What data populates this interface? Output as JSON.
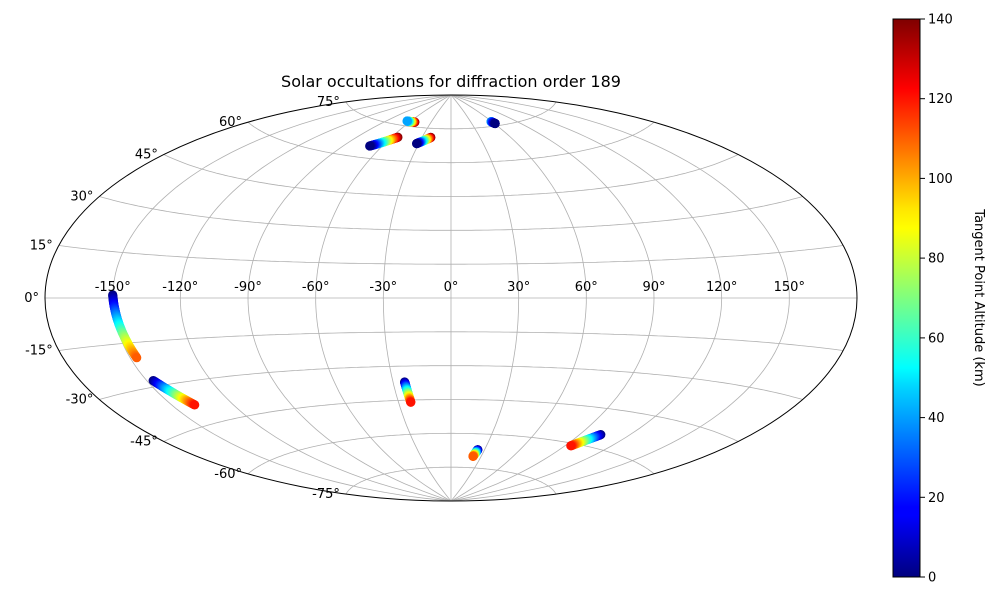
{
  "chart_data": {
    "type": "scatter",
    "projection": "aitoff",
    "title": "Solar occultations for diffraction order 189",
    "grid": true,
    "lon_ticks": [
      "-150°",
      "-120°",
      "-90°",
      "-60°",
      "-30°",
      "0°",
      "30°",
      "60°",
      "90°",
      "120°",
      "150°"
    ],
    "lon_tick_values": [
      -150,
      -120,
      -90,
      -60,
      -30,
      0,
      30,
      60,
      90,
      120,
      150
    ],
    "lat_ticks": [
      "-75°",
      "-60°",
      "-45°",
      "-30°",
      "-15°",
      "0°",
      "15°",
      "30°",
      "45°",
      "60°",
      "75°"
    ],
    "lat_tick_values": [
      -75,
      -60,
      -45,
      -30,
      -15,
      0,
      15,
      30,
      45,
      60,
      75
    ],
    "colorbar": {
      "label": "Tangent Point Altitude (km)",
      "range": [
        0,
        140
      ],
      "colormap": "jet",
      "ticks": [
        "0",
        "20",
        "40",
        "60",
        "80",
        "100",
        "120",
        "140"
      ],
      "tick_values": [
        0,
        20,
        40,
        60,
        80,
        100,
        120,
        140
      ]
    },
    "tracks": [
      {
        "lon_start": -53,
        "lat_start": 77,
        "lon_end": -65,
        "lat_end": 77,
        "alt_start": 140,
        "alt_end": 40
      },
      {
        "lon_start": -54,
        "lat_start": 70,
        "lon_end": -70,
        "lat_end": 65,
        "alt_start": 140,
        "alt_end": 0
      },
      {
        "lon_start": -21,
        "lat_start": 71,
        "lon_end": -32,
        "lat_end": 68,
        "alt_start": 140,
        "alt_end": 0
      },
      {
        "lon_start": 59,
        "lat_start": 77,
        "lon_end": 61,
        "lat_end": 76,
        "alt_start": 40,
        "alt_end": 0
      },
      {
        "lon_start": -150,
        "lat_start": 1,
        "lon_end": -147,
        "lat_end": -20,
        "alt_start": 0,
        "alt_end": 110
      },
      {
        "lon_start": -147,
        "lat_start": -28,
        "lon_end": -139,
        "lat_end": -38,
        "alt_start": 0,
        "alt_end": 120
      },
      {
        "lon_start": -24,
        "lat_start": -37,
        "lon_end": -23,
        "lat_end": -46,
        "alt_start": 0,
        "alt_end": 120
      },
      {
        "lon_start": 24,
        "lat_start": -67,
        "lon_end": 22,
        "lat_end": -70,
        "alt_start": 0,
        "alt_end": 110
      },
      {
        "lon_start": 103,
        "lat_start": -55,
        "lon_end": 94,
        "lat_end": -61,
        "alt_start": 0,
        "alt_end": 120
      }
    ]
  }
}
